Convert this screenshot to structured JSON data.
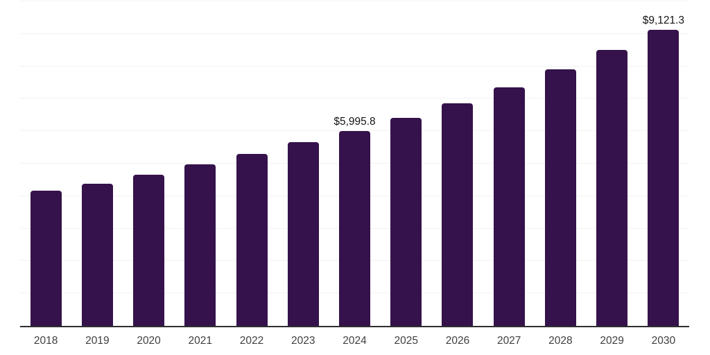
{
  "chart": {
    "background_color": "#ffffff",
    "bar_color": "#35124b",
    "grid_color": "#f2f2f2",
    "axis_color": "#2e2e2e",
    "tick_label_color": "#3f3f3f",
    "value_label_color": "#141414"
  },
  "chart_data": {
    "type": "bar",
    "title": "",
    "xlabel": "",
    "ylabel": "",
    "categories": [
      "2018",
      "2019",
      "2020",
      "2021",
      "2022",
      "2023",
      "2024",
      "2025",
      "2026",
      "2027",
      "2028",
      "2029",
      "2030"
    ],
    "values": [
      4165,
      4390,
      4660,
      4970,
      5295,
      5655,
      5995.8,
      6405,
      6855,
      7345,
      7900,
      8500,
      9121.3
    ],
    "data_labels": {
      "2024": "$5,995.8",
      "2030": "$9,121.3"
    },
    "ylim": [
      0,
      10000
    ],
    "gridline_interval": 1000,
    "grid": true,
    "legend": false,
    "y_tick_labels_visible": false,
    "bar_corner_radius": 4
  }
}
